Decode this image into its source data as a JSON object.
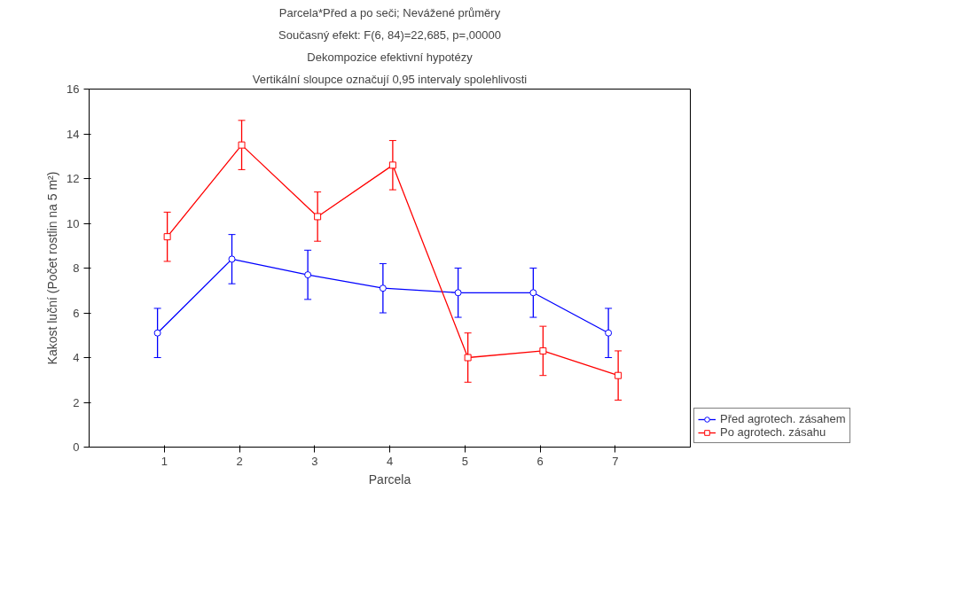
{
  "chart_data": {
    "type": "line",
    "title": "Parcela*Před a po seči; Nevážené průměry",
    "subtitle": "Současný efekt: F(6, 84)=22,685, p=,00000",
    "annotations": [
      "Dekompozice efektivní hypotézy",
      "Vertikální sloupce označují 0,95 intervaly spolehlivosti"
    ],
    "xlabel": "Parcela",
    "ylabel": "Kakost luční (Počet rostlin na 5 m²)",
    "xlim": [
      0,
      8
    ],
    "xticks": [
      1,
      2,
      3,
      4,
      5,
      6,
      7
    ],
    "ylim": [
      0,
      16
    ],
    "yticks": [
      0,
      2,
      4,
      6,
      8,
      10,
      12,
      14,
      16
    ],
    "grid": false,
    "legend": "bottom right",
    "series": [
      {
        "name": "Před agrotech. zásahem",
        "color": "#0000ff",
        "marker": "circle",
        "x": [
          0.91,
          1.9,
          2.91,
          3.91,
          4.91,
          5.91,
          6.91
        ],
        "values": [
          5.1,
          8.4,
          7.7,
          7.1,
          6.9,
          6.9,
          5.1
        ],
        "errors": [
          1.1,
          1.1,
          1.1,
          1.1,
          1.1,
          1.1,
          1.1
        ]
      },
      {
        "name": "Po agrotech. zásahu",
        "color": "#ff0000",
        "marker": "square",
        "x": [
          1.04,
          2.03,
          3.04,
          4.04,
          5.04,
          6.04,
          7.04
        ],
        "values": [
          9.4,
          13.5,
          10.3,
          12.6,
          4.0,
          4.3,
          3.2
        ],
        "errors": [
          1.1,
          1.1,
          1.1,
          1.1,
          1.1,
          1.1,
          1.1
        ]
      }
    ]
  }
}
